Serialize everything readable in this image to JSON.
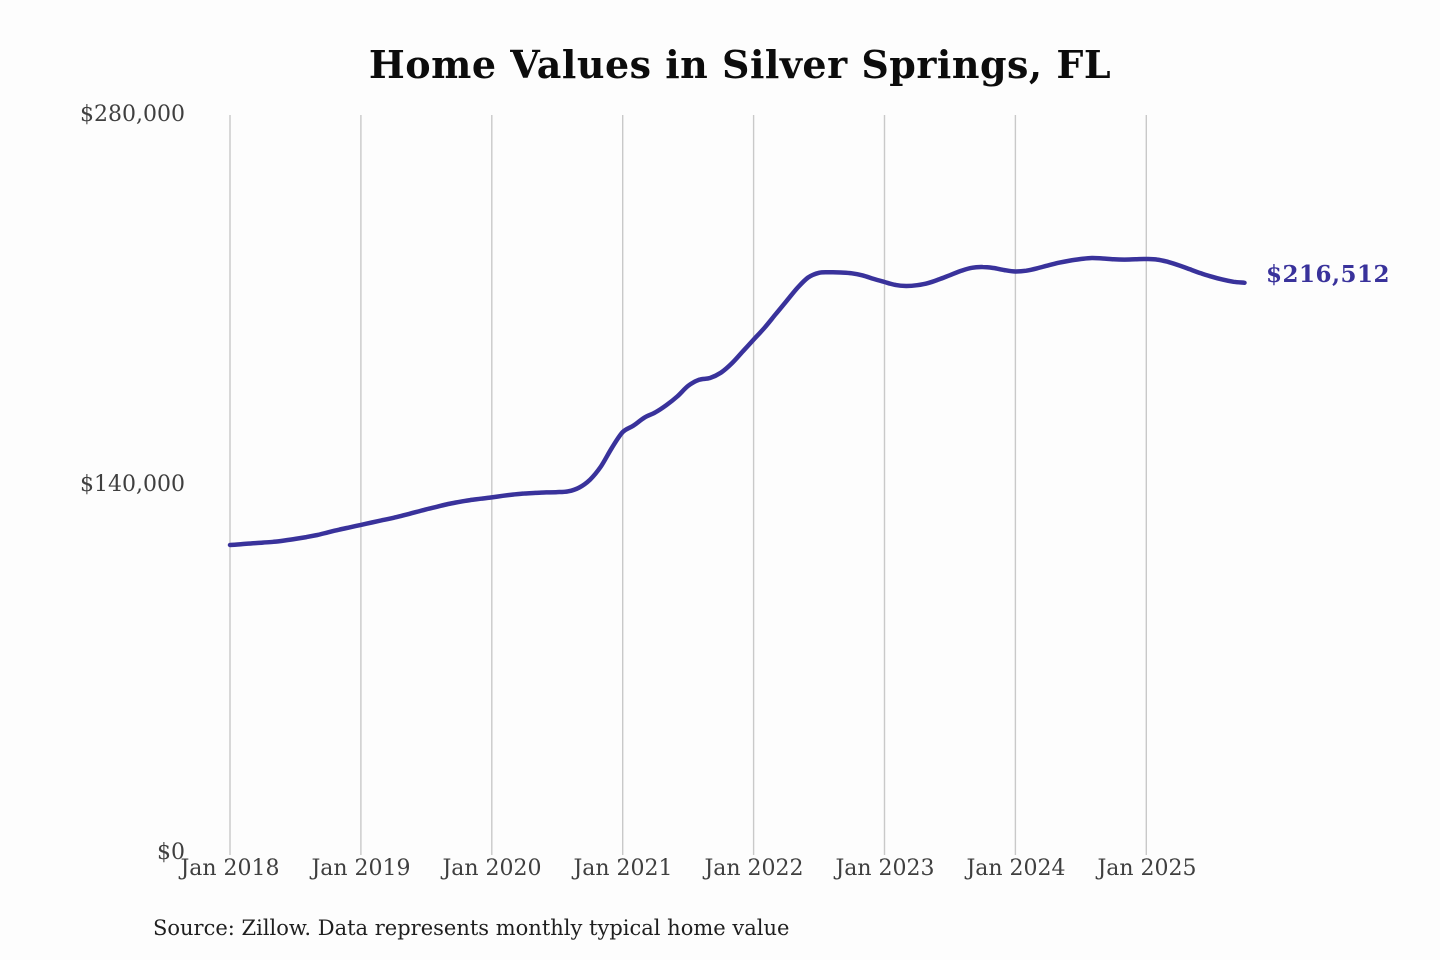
{
  "title": "Home Values in Silver Springs, FL",
  "source_note": "Source: Zillow. Data represents monthly typical home value",
  "end_label": "$216,512",
  "colors": {
    "line": "#39329b",
    "grid": "#c9c9c9",
    "axis_text": "#3f3f3f",
    "title_text": "#0c0c0c"
  },
  "chart_data": {
    "type": "line",
    "title": "Home Values in Silver Springs, FL",
    "xlabel": "",
    "ylabel": "",
    "ylim": [
      0,
      280000
    ],
    "grid": "vertical",
    "legend": "none",
    "x_tick_labels": [
      "Jan 2018",
      "Jan 2019",
      "Jan 2020",
      "Jan 2021",
      "Jan 2022",
      "Jan 2023",
      "Jan 2024",
      "Jan 2025"
    ],
    "y_tick_labels": [
      "$280,000",
      "$140,000",
      "$0"
    ],
    "y_tick_values": [
      280000,
      140000,
      0
    ],
    "points_start": "Jan 2018",
    "points_frequency": "monthly",
    "final_value": 216512,
    "series": [
      {
        "name": "Typical home value",
        "values": [
          117300,
          117600,
          117900,
          118200,
          118500,
          119000,
          119600,
          120300,
          121100,
          122100,
          123100,
          124000,
          124900,
          125800,
          126700,
          127600,
          128600,
          129700,
          130800,
          131800,
          132800,
          133600,
          134300,
          134800,
          135300,
          135900,
          136400,
          136800,
          137000,
          137200,
          137300,
          137600,
          139000,
          142000,
          147000,
          154000,
          160000,
          162500,
          165500,
          167500,
          170200,
          173500,
          177500,
          179800,
          180500,
          182500,
          186000,
          190500,
          195000,
          199500,
          204500,
          209500,
          214500,
          218500,
          220300,
          220500,
          220400,
          220100,
          219300,
          218000,
          216800,
          215700,
          215300,
          215600,
          216400,
          217800,
          219400,
          221000,
          222200,
          222500,
          222100,
          221300,
          220800,
          221100,
          222000,
          223100,
          224100,
          224900,
          225500,
          225900,
          225700,
          225400,
          225300,
          225400,
          225500,
          225300,
          224400,
          223100,
          221600,
          220100,
          218800,
          217700,
          216900,
          216512
        ]
      }
    ]
  }
}
